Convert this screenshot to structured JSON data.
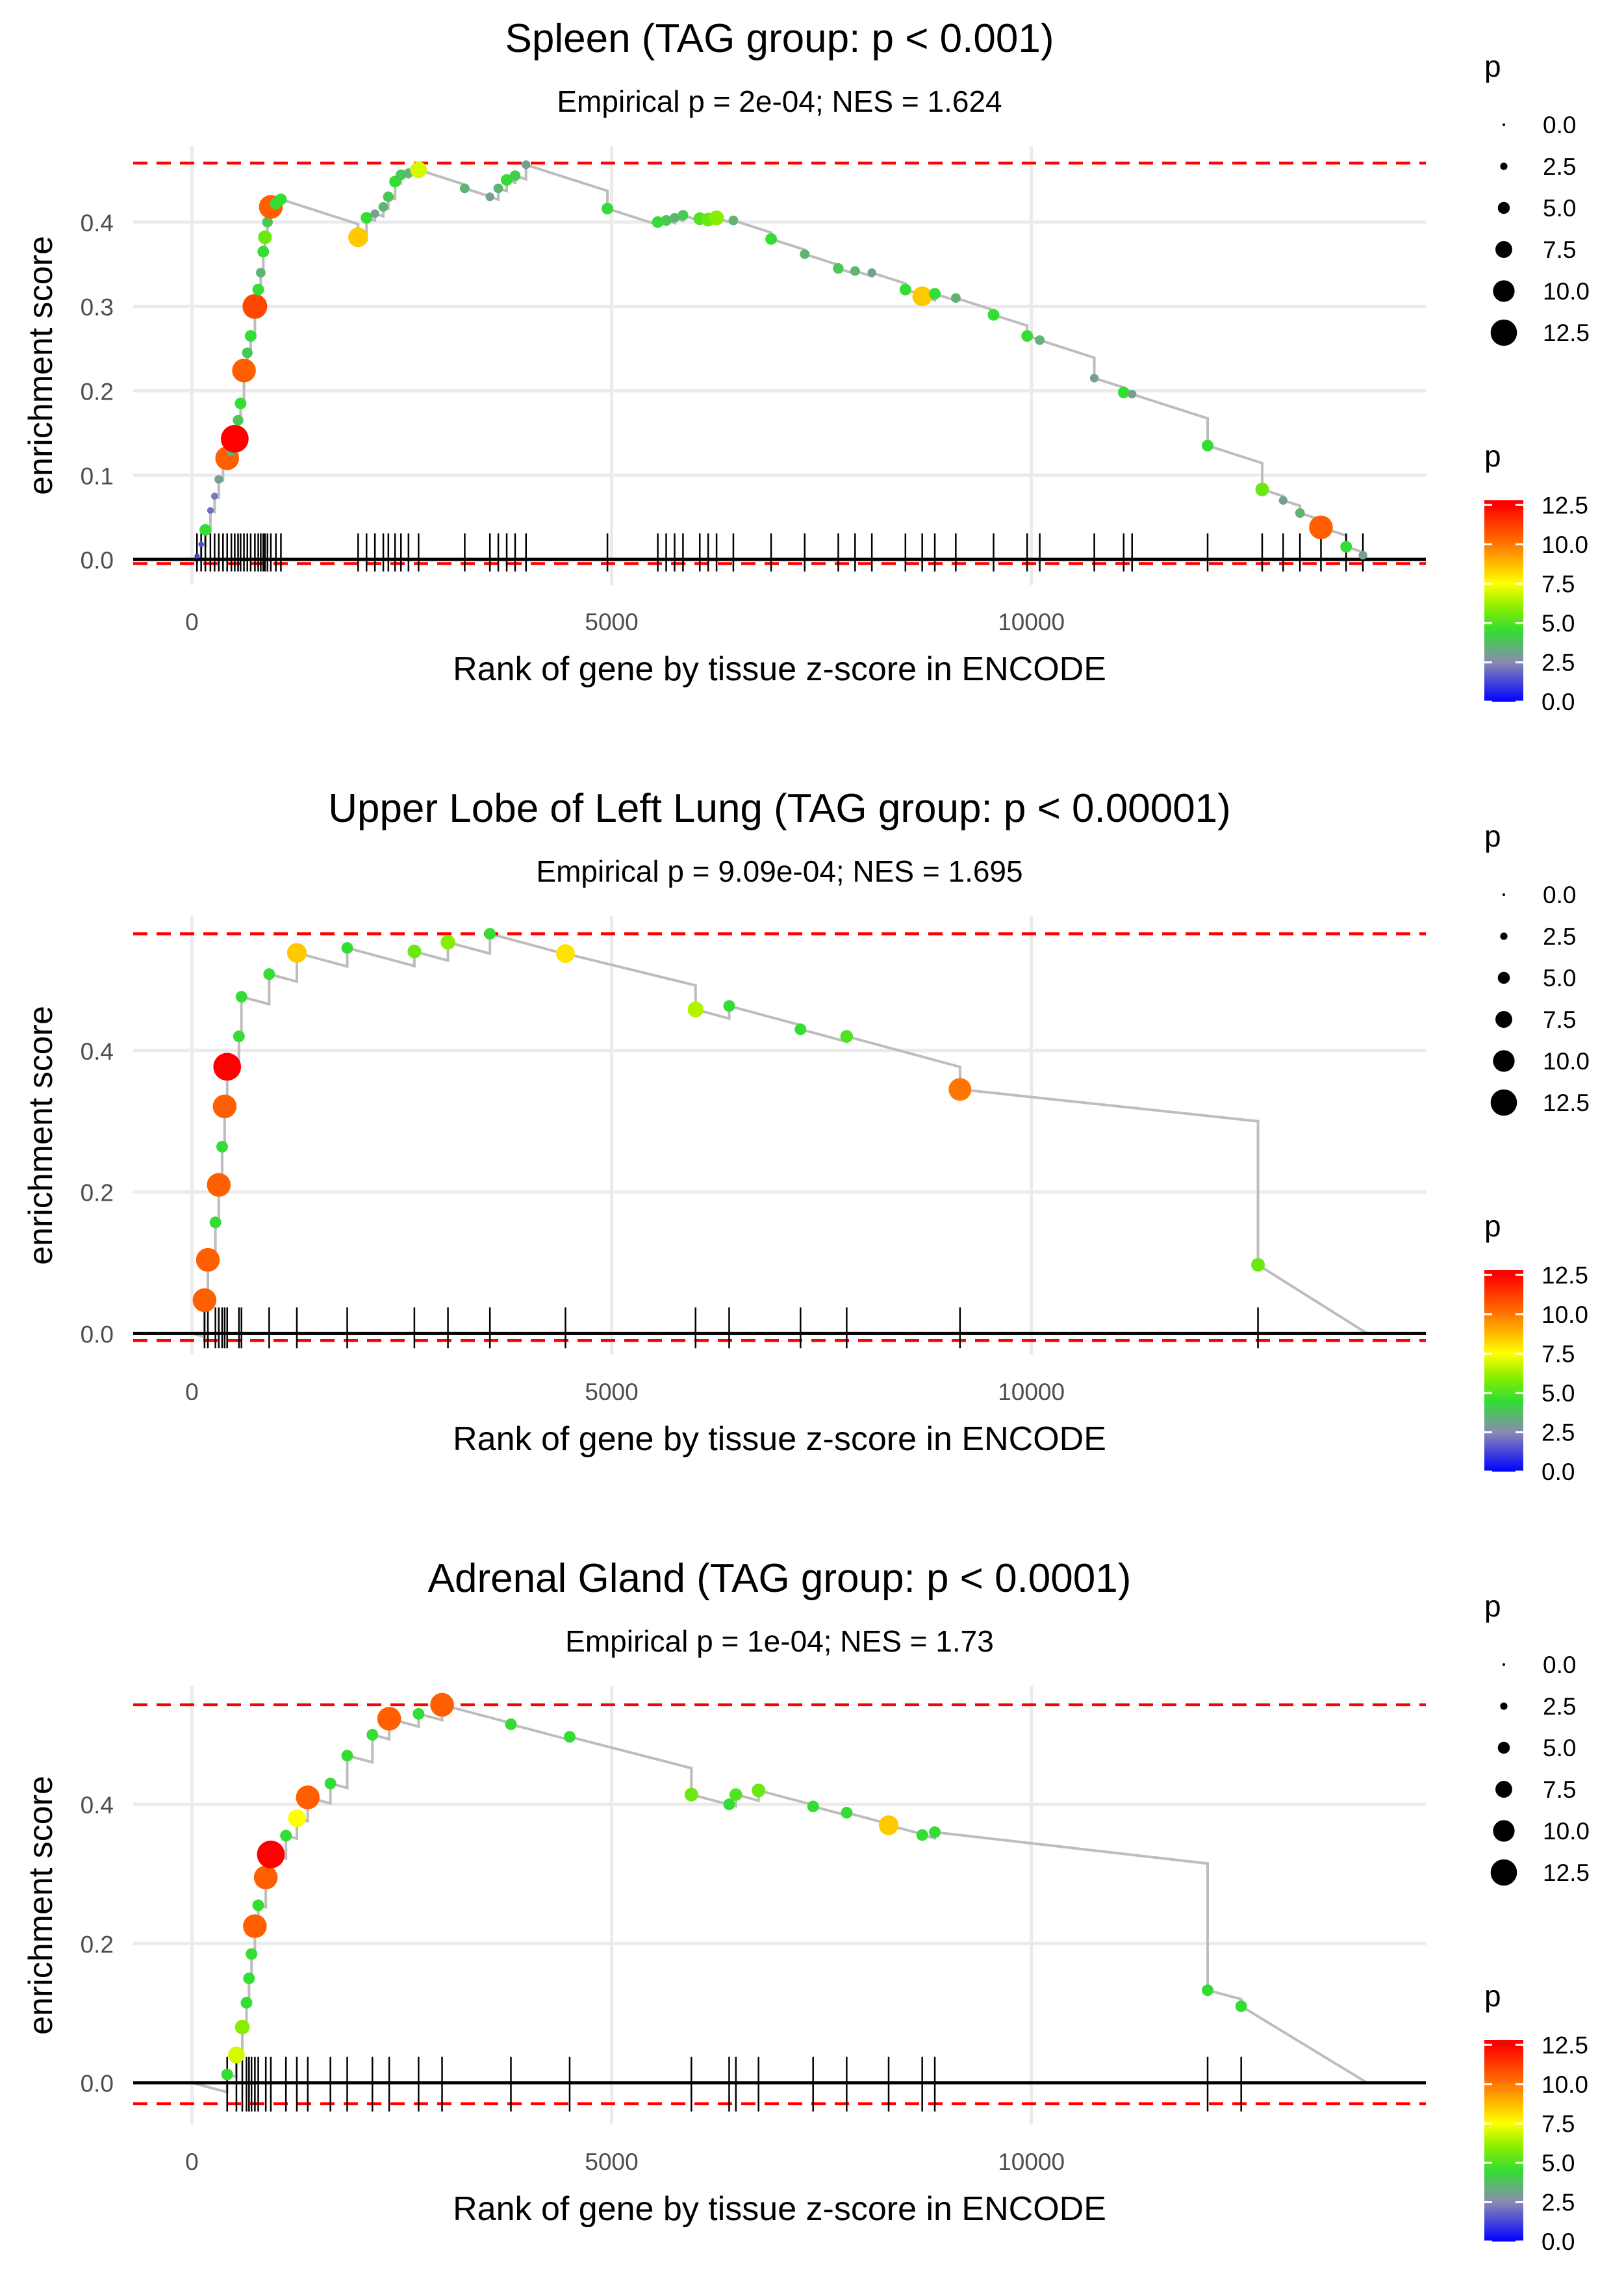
{
  "chart_data": [
    {
      "type": "scatter",
      "title": "Spleen (TAG group: p < 0.001)",
      "subtitle": "Empirical p = 2e-04; NES = 1.624",
      "xlabel": "Rank of gene by tissue z-score in ENCODE",
      "ylabel": "enrichment score",
      "xlim": [
        -700,
        14700
      ],
      "ylim": [
        -0.03,
        0.49
      ],
      "xticks": [
        0,
        5000,
        10000
      ],
      "xtick_labels": [
        "0",
        "5000",
        "10000"
      ],
      "yticks": [
        0.0,
        0.1,
        0.2,
        0.3,
        0.4
      ],
      "ytick_labels": [
        "0.0",
        "0.1",
        "0.2",
        "0.3",
        "0.4"
      ],
      "max_es": 0.47,
      "min_es": -0.005,
      "n_genes": 14000,
      "legend_size_title": "p",
      "legend_color_title": "p",
      "legend_values": [
        0.0,
        2.5,
        5.0,
        7.5,
        10.0,
        12.5
      ],
      "legend_labels": [
        "0.0",
        "2.5",
        "5.0",
        "7.5",
        "10.0",
        "12.5"
      ],
      "points": [
        {
          "x": 60,
          "y": 0.004,
          "p": 1.2
        },
        {
          "x": 110,
          "y": 0.018,
          "p": 1.5
        },
        {
          "x": 160,
          "y": 0.035,
          "p": 4.5
        },
        {
          "x": 220,
          "y": 0.058,
          "p": 2.0
        },
        {
          "x": 270,
          "y": 0.075,
          "p": 2.2
        },
        {
          "x": 320,
          "y": 0.095,
          "p": 3.0
        },
        {
          "x": 370,
          "y": 0.115,
          "p": 2.8
        },
        {
          "x": 420,
          "y": 0.12,
          "p": 10.5
        },
        {
          "x": 470,
          "y": 0.128,
          "p": 3.5
        },
        {
          "x": 510,
          "y": 0.143,
          "p": 12.5
        },
        {
          "x": 550,
          "y": 0.165,
          "p": 4.0
        },
        {
          "x": 580,
          "y": 0.185,
          "p": 4.5
        },
        {
          "x": 620,
          "y": 0.224,
          "p": 10.5
        },
        {
          "x": 660,
          "y": 0.245,
          "p": 4.0
        },
        {
          "x": 700,
          "y": 0.265,
          "p": 4.5
        },
        {
          "x": 750,
          "y": 0.3,
          "p": 11.0
        },
        {
          "x": 790,
          "y": 0.32,
          "p": 4.5
        },
        {
          "x": 820,
          "y": 0.34,
          "p": 3.5
        },
        {
          "x": 850,
          "y": 0.365,
          "p": 4.5
        },
        {
          "x": 870,
          "y": 0.382,
          "p": 5.5
        },
        {
          "x": 900,
          "y": 0.4,
          "p": 4.0
        },
        {
          "x": 940,
          "y": 0.418,
          "p": 10.5
        },
        {
          "x": 1000,
          "y": 0.422,
          "p": 4.5
        },
        {
          "x": 1060,
          "y": 0.427,
          "p": 4.5
        },
        {
          "x": 1980,
          "y": 0.382,
          "p": 8.5
        },
        {
          "x": 2080,
          "y": 0.405,
          "p": 4.5
        },
        {
          "x": 2180,
          "y": 0.41,
          "p": 3.0
        },
        {
          "x": 2280,
          "y": 0.418,
          "p": 3.5
        },
        {
          "x": 2340,
          "y": 0.43,
          "p": 4.0
        },
        {
          "x": 2420,
          "y": 0.448,
          "p": 4.5
        },
        {
          "x": 2490,
          "y": 0.456,
          "p": 4.0
        },
        {
          "x": 2580,
          "y": 0.458,
          "p": 3.5
        },
        {
          "x": 2700,
          "y": 0.462,
          "p": 7.0
        },
        {
          "x": 3250,
          "y": 0.44,
          "p": 3.5
        },
        {
          "x": 3550,
          "y": 0.43,
          "p": 3.0
        },
        {
          "x": 3650,
          "y": 0.44,
          "p": 3.5
        },
        {
          "x": 3750,
          "y": 0.45,
          "p": 4.5
        },
        {
          "x": 3850,
          "y": 0.455,
          "p": 4.0
        },
        {
          "x": 3980,
          "y": 0.468,
          "p": 3.0
        },
        {
          "x": 4950,
          "y": 0.416,
          "p": 4.5
        },
        {
          "x": 5550,
          "y": 0.4,
          "p": 4.5
        },
        {
          "x": 5650,
          "y": 0.402,
          "p": 4.0
        },
        {
          "x": 5750,
          "y": 0.405,
          "p": 3.5
        },
        {
          "x": 5850,
          "y": 0.408,
          "p": 4.0
        },
        {
          "x": 6050,
          "y": 0.404,
          "p": 5.0
        },
        {
          "x": 6150,
          "y": 0.403,
          "p": 5.5
        },
        {
          "x": 6250,
          "y": 0.405,
          "p": 6.0
        },
        {
          "x": 6450,
          "y": 0.402,
          "p": 3.5
        },
        {
          "x": 6900,
          "y": 0.38,
          "p": 4.5
        },
        {
          "x": 7300,
          "y": 0.362,
          "p": 3.5
        },
        {
          "x": 7700,
          "y": 0.345,
          "p": 4.0
        },
        {
          "x": 7900,
          "y": 0.342,
          "p": 3.5
        },
        {
          "x": 8100,
          "y": 0.34,
          "p": 3.0
        },
        {
          "x": 8500,
          "y": 0.32,
          "p": 4.5
        },
        {
          "x": 8700,
          "y": 0.312,
          "p": 8.5
        },
        {
          "x": 8850,
          "y": 0.315,
          "p": 4.5
        },
        {
          "x": 9100,
          "y": 0.31,
          "p": 3.5
        },
        {
          "x": 9550,
          "y": 0.29,
          "p": 4.5
        },
        {
          "x": 9950,
          "y": 0.265,
          "p": 4.5
        },
        {
          "x": 10100,
          "y": 0.26,
          "p": 3.5
        },
        {
          "x": 10750,
          "y": 0.215,
          "p": 3.0
        },
        {
          "x": 11100,
          "y": 0.198,
          "p": 4.5
        },
        {
          "x": 11200,
          "y": 0.196,
          "p": 3.0
        },
        {
          "x": 12100,
          "y": 0.135,
          "p": 4.5
        },
        {
          "x": 12750,
          "y": 0.083,
          "p": 5.5
        },
        {
          "x": 13000,
          "y": 0.07,
          "p": 3.0
        },
        {
          "x": 13200,
          "y": 0.055,
          "p": 3.5
        },
        {
          "x": 13450,
          "y": 0.038,
          "p": 10.5
        },
        {
          "x": 13750,
          "y": 0.015,
          "p": 4.5
        },
        {
          "x": 13950,
          "y": 0.005,
          "p": 3.0
        }
      ]
    },
    {
      "type": "scatter",
      "title": "Upper Lobe of Left Lung (TAG group: p < 0.00001)",
      "subtitle": "Empirical p = 9.09e-04; NES = 1.695",
      "xlabel": "Rank of gene by tissue z-score in ENCODE",
      "ylabel": "enrichment score",
      "xlim": [
        -700,
        14700
      ],
      "ylim": [
        -0.03,
        0.59
      ],
      "xticks": [
        0,
        5000,
        10000
      ],
      "xtick_labels": [
        "0",
        "5000",
        "10000"
      ],
      "yticks": [
        0.0,
        0.2,
        0.4
      ],
      "ytick_labels": [
        "0.0",
        "0.2",
        "0.4"
      ],
      "max_es": 0.565,
      "min_es": -0.01,
      "n_genes": 14000,
      "legend_size_title": "p",
      "legend_color_title": "p",
      "legend_values": [
        0.0,
        2.5,
        5.0,
        7.5,
        10.0,
        12.5
      ],
      "legend_labels": [
        "0.0",
        "2.5",
        "5.0",
        "7.5",
        "10.0",
        "12.5"
      ],
      "points": [
        {
          "x": 150,
          "y": 0.047,
          "p": 10.5
        },
        {
          "x": 190,
          "y": 0.104,
          "p": 10.5
        },
        {
          "x": 280,
          "y": 0.157,
          "p": 4.5
        },
        {
          "x": 320,
          "y": 0.21,
          "p": 10.5
        },
        {
          "x": 360,
          "y": 0.264,
          "p": 4.5
        },
        {
          "x": 390,
          "y": 0.321,
          "p": 10.5
        },
        {
          "x": 420,
          "y": 0.377,
          "p": 12.5
        },
        {
          "x": 560,
          "y": 0.42,
          "p": 4.5
        },
        {
          "x": 590,
          "y": 0.476,
          "p": 4.5
        },
        {
          "x": 920,
          "y": 0.508,
          "p": 4.5
        },
        {
          "x": 1250,
          "y": 0.538,
          "p": 8.5
        },
        {
          "x": 1850,
          "y": 0.545,
          "p": 4.5
        },
        {
          "x": 2650,
          "y": 0.54,
          "p": 5.5
        },
        {
          "x": 3050,
          "y": 0.553,
          "p": 6.0
        },
        {
          "x": 3550,
          "y": 0.565,
          "p": 4.5
        },
        {
          "x": 4450,
          "y": 0.537,
          "p": 8.0
        },
        {
          "x": 6000,
          "y": 0.458,
          "p": 6.5
        },
        {
          "x": 6400,
          "y": 0.463,
          "p": 4.5
        },
        {
          "x": 7250,
          "y": 0.43,
          "p": 4.5
        },
        {
          "x": 7800,
          "y": 0.42,
          "p": 5.0
        },
        {
          "x": 9150,
          "y": 0.345,
          "p": 10.0
        },
        {
          "x": 12700,
          "y": 0.097,
          "p": 5.5
        }
      ]
    },
    {
      "type": "scatter",
      "title": "Adrenal Gland (TAG group: p < 0.0001)",
      "subtitle": "Empirical p = 1e-04; NES = 1.73",
      "xlabel": "Rank of gene by tissue z-score in ENCODE",
      "ylabel": "enrichment score",
      "xlim": [
        -700,
        14700
      ],
      "ylim": [
        -0.06,
        0.57
      ],
      "xticks": [
        0,
        5000,
        10000
      ],
      "xtick_labels": [
        "0",
        "5000",
        "10000"
      ],
      "yticks": [
        0.0,
        0.2,
        0.4
      ],
      "ytick_labels": [
        "0.0",
        "0.2",
        "0.4"
      ],
      "max_es": 0.543,
      "min_es": -0.03,
      "n_genes": 14000,
      "legend_size_title": "p",
      "legend_color_title": "p",
      "legend_values": [
        0.0,
        2.5,
        5.0,
        7.5,
        10.0,
        12.5
      ],
      "legend_labels": [
        "0.0",
        "2.5",
        "5.0",
        "7.5",
        "10.0",
        "12.5"
      ],
      "points": [
        {
          "x": 420,
          "y": 0.012,
          "p": 4.5
        },
        {
          "x": 530,
          "y": 0.04,
          "p": 7.0
        },
        {
          "x": 600,
          "y": 0.08,
          "p": 6.0
        },
        {
          "x": 650,
          "y": 0.115,
          "p": 4.5
        },
        {
          "x": 680,
          "y": 0.15,
          "p": 4.5
        },
        {
          "x": 710,
          "y": 0.185,
          "p": 4.5
        },
        {
          "x": 750,
          "y": 0.225,
          "p": 10.5
        },
        {
          "x": 790,
          "y": 0.255,
          "p": 4.5
        },
        {
          "x": 880,
          "y": 0.295,
          "p": 10.5
        },
        {
          "x": 940,
          "y": 0.328,
          "p": 12.5
        },
        {
          "x": 1120,
          "y": 0.355,
          "p": 4.5
        },
        {
          "x": 1250,
          "y": 0.38,
          "p": 7.5
        },
        {
          "x": 1380,
          "y": 0.41,
          "p": 10.5
        },
        {
          "x": 1650,
          "y": 0.43,
          "p": 4.5
        },
        {
          "x": 1850,
          "y": 0.47,
          "p": 4.5
        },
        {
          "x": 2150,
          "y": 0.5,
          "p": 4.5
        },
        {
          "x": 2350,
          "y": 0.523,
          "p": 10.5
        },
        {
          "x": 2700,
          "y": 0.53,
          "p": 4.5
        },
        {
          "x": 2980,
          "y": 0.543,
          "p": 10.5
        },
        {
          "x": 3800,
          "y": 0.515,
          "p": 4.5
        },
        {
          "x": 4500,
          "y": 0.497,
          "p": 4.5
        },
        {
          "x": 5950,
          "y": 0.414,
          "p": 5.5
        },
        {
          "x": 6400,
          "y": 0.4,
          "p": 4.5
        },
        {
          "x": 6480,
          "y": 0.414,
          "p": 5.0
        },
        {
          "x": 6750,
          "y": 0.42,
          "p": 5.5
        },
        {
          "x": 7400,
          "y": 0.397,
          "p": 4.5
        },
        {
          "x": 7800,
          "y": 0.388,
          "p": 4.5
        },
        {
          "x": 8300,
          "y": 0.37,
          "p": 8.5
        },
        {
          "x": 8700,
          "y": 0.356,
          "p": 4.5
        },
        {
          "x": 8850,
          "y": 0.36,
          "p": 4.5
        },
        {
          "x": 12100,
          "y": 0.133,
          "p": 4.5
        },
        {
          "x": 12500,
          "y": 0.11,
          "p": 4.5
        }
      ]
    }
  ]
}
